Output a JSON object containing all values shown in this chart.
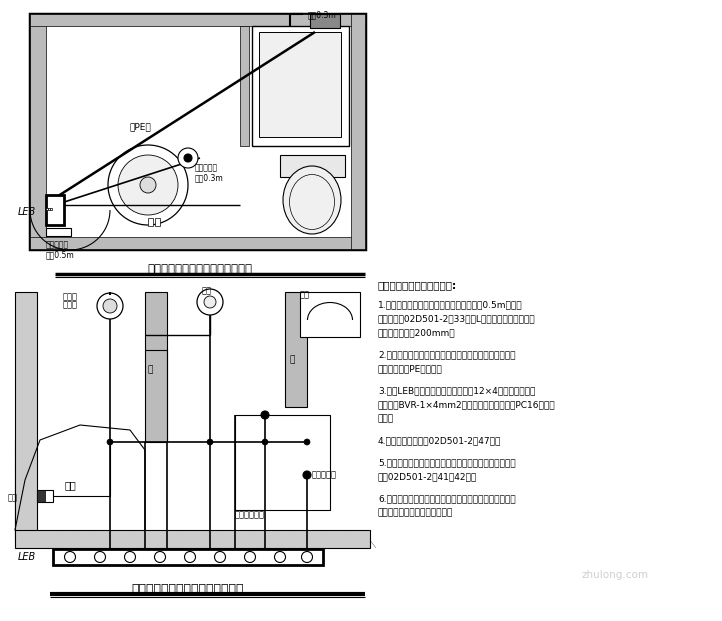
{
  "bg_color": "#ffffff",
  "lc": "#000000",
  "gray": "#aaaaaa",
  "hatch_gray": "#888888",
  "plan_title": "卫生间局部等电位连接平面示意图",
  "schematic_title": "卫生间局部等电位连接系统原理图",
  "notes_title": "卫生间局部等电位连接说明:",
  "note1a": "1.卫生间等电位端子箱位置详见平面，距地0.5m，具体",
  "note1b": "做法见图集02D501-2第33页；L（长度）由施工单位确",
  "note1c": "定，但不应小于200mm。",
  "note2a": "2.卫生间等电位端子箱须与墙上预埋件、金属浴盆、金属",
  "note2b": "给排水管以及PE线连接。",
  "note3a": "3.图中LEB端子板配线至预埋件采用12×4的镀锌扁钢，其",
  "note3b": "余均采用BVR-1×4mm2铜线在装修内或墙内穿PC16塑料管",
  "note3c": "暗敷。",
  "note4": "4.预埋件做法详图集02D501-2第47页。",
  "note5a": "5.等电位连接线与浴盆、下水管等卫生设备的连接做法详",
  "note5b": "图集02D501-2第41、42页。",
  "note6a": "6.卫生间内的各种金属构件若定于二次装修施工，则除去",
  "note6b": "灯具及插座外，其余仅作预留。"
}
